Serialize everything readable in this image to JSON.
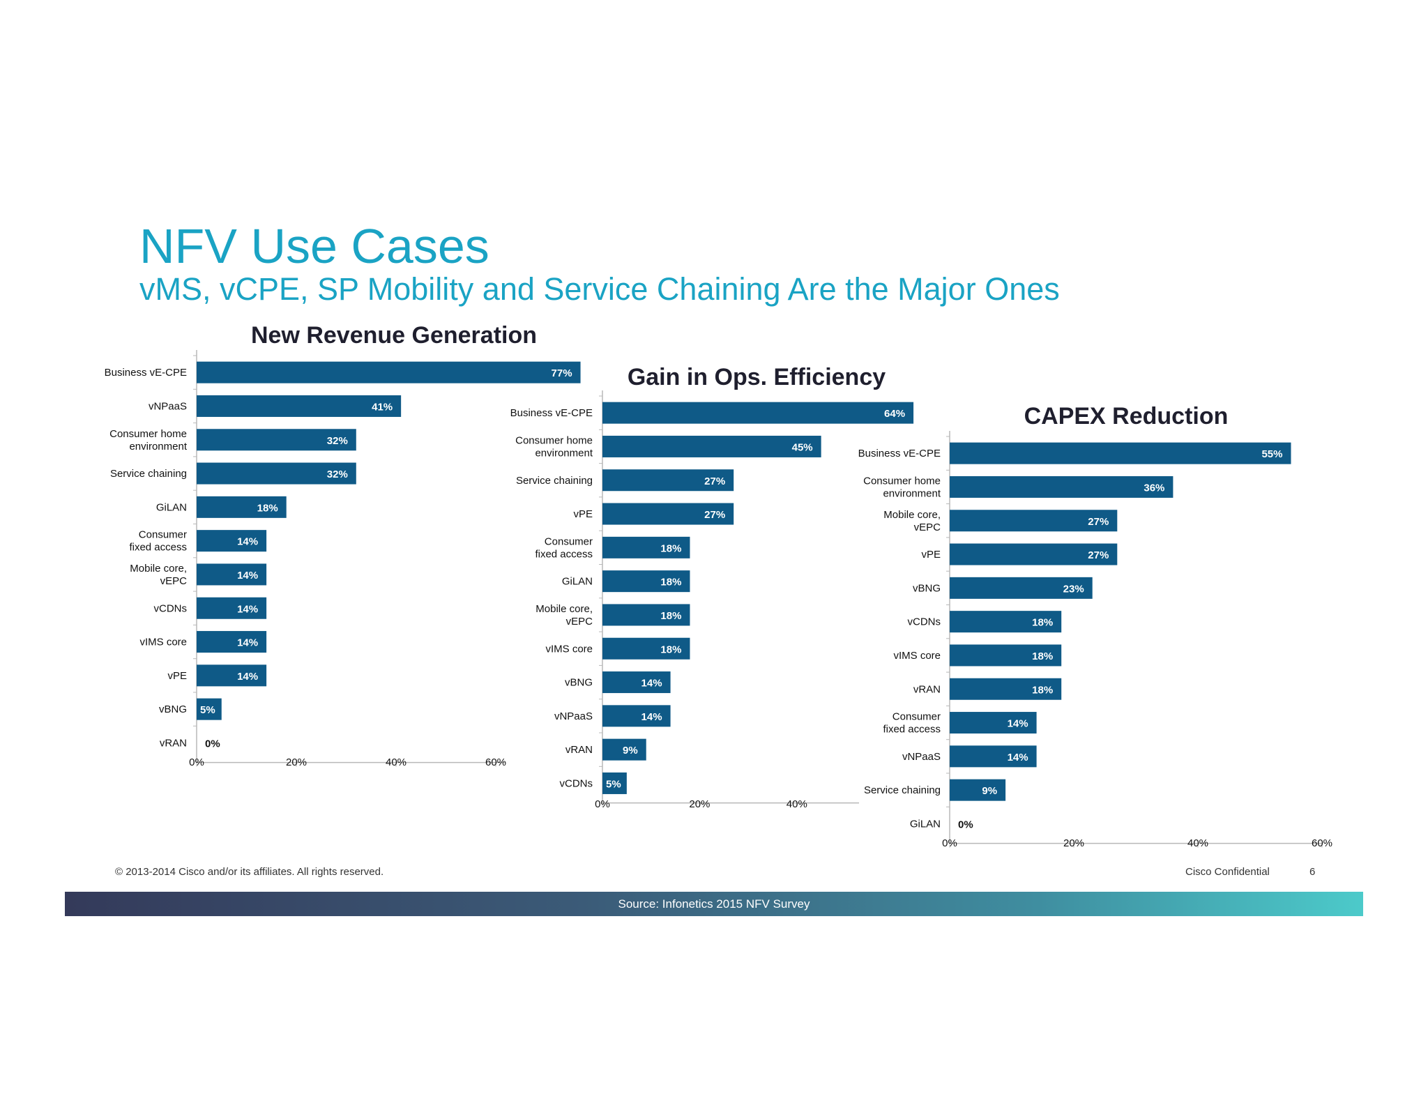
{
  "slide": {
    "title": "NFV Use Cases",
    "subtitle": "vMS, vCPE, SP Mobility and Service Chaining Are the Major Ones",
    "copyright": "© 2013-2014  Cisco and/or its affiliates. All rights reserved.",
    "confidential": "Cisco Confidential",
    "page_number": "6",
    "source": "Source: Infonetics 2015 NFV Survey"
  },
  "colors": {
    "title": "#1aa3c4",
    "bar": "#0f5a87",
    "bar_label": "#ffffff",
    "chart_title": "#1f1f2e"
  },
  "chart_data": [
    {
      "type": "bar",
      "orientation": "horizontal",
      "title": "New Revenue Generation",
      "categories": [
        "Business vE-CPE",
        "vNPaaS",
        "Consumer home environment",
        "Service chaining",
        "GiLAN",
        "Consumer fixed access",
        "Mobile core, vEPC",
        "vCDNs",
        "vIMS core",
        "vPE",
        "vBNG",
        "vRAN"
      ],
      "values": [
        77,
        41,
        32,
        32,
        18,
        14,
        14,
        14,
        14,
        14,
        5,
        0
      ],
      "data_labels": [
        "77%",
        "41%",
        "32%",
        "32%",
        "18%",
        "14%",
        "14%",
        "14%",
        "14%",
        "14%",
        "5%",
        "0%"
      ],
      "xticks": [
        "0%",
        "20%",
        "40%",
        "60%"
      ],
      "xlim": [
        0,
        60
      ]
    },
    {
      "type": "bar",
      "orientation": "horizontal",
      "title": "Gain in Ops. Efficiency",
      "categories": [
        "Business vE-CPE",
        "Consumer home environment",
        "Service chaining",
        "vPE",
        "Consumer fixed access",
        "GiLAN",
        "Mobile core, vEPC",
        "vIMS core",
        "vBNG",
        "vNPaaS",
        "vRAN",
        "vCDNs"
      ],
      "values": [
        64,
        45,
        27,
        27,
        18,
        18,
        18,
        18,
        14,
        14,
        9,
        5
      ],
      "data_labels": [
        "64%",
        "45%",
        "27%",
        "27%",
        "18%",
        "18%",
        "18%",
        "18%",
        "14%",
        "14%",
        "9%",
        "5%"
      ],
      "xticks": [
        "0%",
        "20%",
        "40%"
      ],
      "xlim": [
        0,
        52
      ]
    },
    {
      "type": "bar",
      "orientation": "horizontal",
      "title": "CAPEX Reduction",
      "categories": [
        "Business vE-CPE",
        "Consumer home environment",
        "Mobile core, vEPC",
        "vPE",
        "vBNG",
        "vCDNs",
        "vIMS core",
        "vRAN",
        "Consumer fixed access",
        "vNPaaS",
        "Service chaining",
        "GiLAN"
      ],
      "values": [
        55,
        36,
        27,
        27,
        23,
        18,
        18,
        18,
        14,
        14,
        9,
        0
      ],
      "data_labels": [
        "55%",
        "36%",
        "27%",
        "27%",
        "23%",
        "18%",
        "18%",
        "18%",
        "14%",
        "14%",
        "9%",
        "0%"
      ],
      "xticks": [
        "0%",
        "20%",
        "40%",
        "60%"
      ],
      "xlim": [
        0,
        60
      ]
    }
  ]
}
